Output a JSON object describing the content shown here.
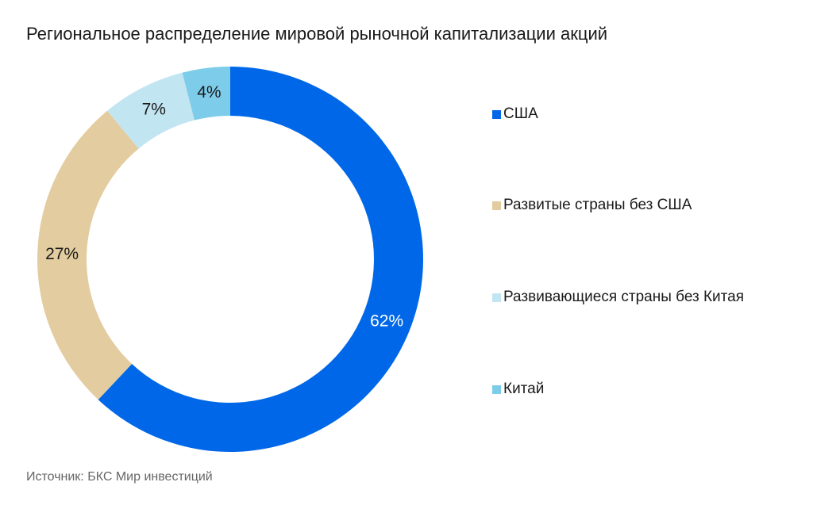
{
  "title": "Региональное распределение мировой рыночной капитализации акций",
  "source": "Источник: БКС Мир инвестиций",
  "chart_data": {
    "type": "pie",
    "donut": true,
    "title": "Региональное распределение мировой рыночной капитализации акций",
    "legend_position": "right",
    "categories": [
      "США",
      "Развитые страны без США",
      "Развивающиеся страны без Китая",
      "Китай"
    ],
    "values": [
      62,
      27,
      7,
      4
    ],
    "labels": [
      "62%",
      "27%",
      "7%",
      "4%"
    ],
    "colors": [
      "#0068E8",
      "#E3CC9F",
      "#C2E5F2",
      "#7DCCEA"
    ],
    "label_colors": [
      "#ffffff",
      "#1a1a1a",
      "#1a1a1a",
      "#1a1a1a"
    ]
  }
}
